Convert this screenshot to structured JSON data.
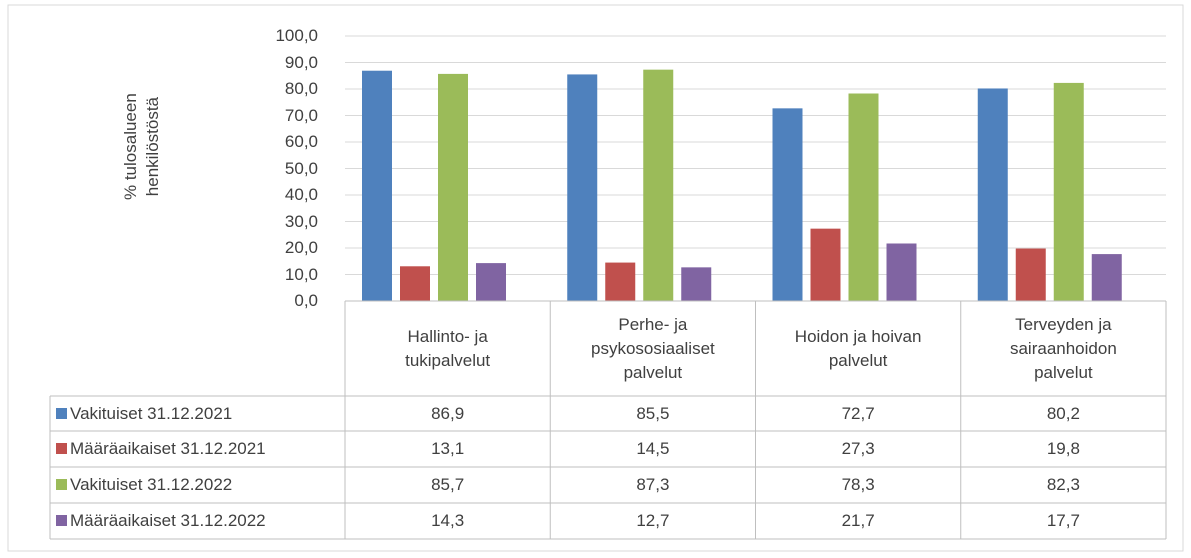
{
  "chart_data": {
    "type": "bar",
    "ylabel": [
      "% tulosalueen",
      "henkilöstöstä"
    ],
    "categories": [
      "Hallinto- ja tukipalvelut",
      "Perhe- ja psykososiaaliset palvelut",
      "Hoidon ja hoivan palvelut",
      "Terveyden ja sairaanhoidon palvelut"
    ],
    "series": [
      {
        "name": "Vakituiset 31.12.2021",
        "color": "#4f81bd",
        "values": [
          86.9,
          85.5,
          72.7,
          80.2
        ],
        "value_labels": [
          "86,9",
          "85,5",
          "72,7",
          "80,2"
        ]
      },
      {
        "name": "Määräaikaiset 31.12.2021",
        "color": "#c0504d",
        "values": [
          13.1,
          14.5,
          27.3,
          19.8
        ],
        "value_labels": [
          "13,1",
          "14,5",
          "27,3",
          "19,8"
        ]
      },
      {
        "name": "Vakituiset 31.12.2022",
        "color": "#9bbb59",
        "values": [
          85.7,
          87.3,
          78.3,
          82.3
        ],
        "value_labels": [
          "85,7",
          "87,3",
          "78,3",
          "82,3"
        ]
      },
      {
        "name": "Määräaikaiset 31.12.2022",
        "color": "#8064a2",
        "values": [
          14.3,
          12.7,
          21.7,
          17.7
        ],
        "value_labels": [
          "14,3",
          "12,7",
          "21,7",
          "17,7"
        ]
      }
    ],
    "ylim": [
      0,
      100
    ],
    "yticks": [
      {
        "value": 0,
        "label": "0,0"
      },
      {
        "value": 10,
        "label": "10,0"
      },
      {
        "value": 20,
        "label": "20,0"
      },
      {
        "value": 30,
        "label": "30,0"
      },
      {
        "value": 40,
        "label": "40,0"
      },
      {
        "value": 50,
        "label": "50,0"
      },
      {
        "value": 60,
        "label": "60,0"
      },
      {
        "value": 70,
        "label": "70,0"
      },
      {
        "value": 80,
        "label": "80,0"
      },
      {
        "value": 90,
        "label": "90,0"
      },
      {
        "value": 100,
        "label": "100,0"
      }
    ],
    "grid": true
  }
}
